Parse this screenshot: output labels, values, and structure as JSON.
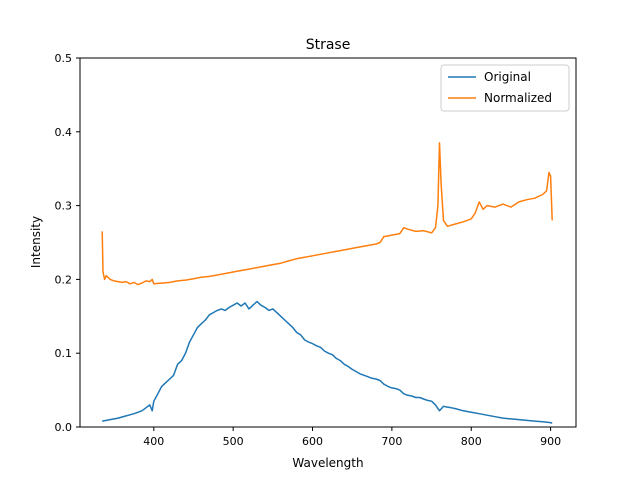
{
  "chart_data": {
    "type": "line",
    "title": "Strase",
    "xlabel": "Wavelength",
    "ylabel": "Intensity",
    "xlim": [
      307,
      932
    ],
    "ylim": [
      0,
      0.5
    ],
    "xticks": [
      "400",
      "500",
      "600",
      "700",
      "800",
      "900"
    ],
    "yticks": [
      "0.0",
      "0.1",
      "0.2",
      "0.3",
      "0.4",
      "0.5"
    ],
    "xtick_values": [
      400,
      500,
      600,
      700,
      800,
      900
    ],
    "ytick_values": [
      0,
      0.1,
      0.2,
      0.3,
      0.4,
      0.5
    ],
    "grid": false,
    "legend_position": "top-right",
    "series": [
      {
        "name": "Original",
        "color": "#1f77b4",
        "x": [
          335,
          345,
          355,
          365,
          375,
          385,
          390,
          395,
          398,
          400,
          405,
          410,
          415,
          420,
          425,
          430,
          435,
          440,
          445,
          450,
          455,
          460,
          465,
          470,
          475,
          480,
          485,
          490,
          495,
          500,
          505,
          510,
          515,
          520,
          525,
          530,
          535,
          540,
          545,
          550,
          555,
          560,
          565,
          570,
          575,
          580,
          585,
          590,
          595,
          600,
          605,
          610,
          615,
          620,
          625,
          630,
          635,
          640,
          645,
          650,
          655,
          660,
          665,
          670,
          675,
          680,
          685,
          690,
          695,
          700,
          705,
          710,
          715,
          720,
          725,
          730,
          735,
          740,
          745,
          750,
          755,
          760,
          765,
          770,
          775,
          780,
          790,
          800,
          810,
          820,
          830,
          840,
          850,
          860,
          870,
          880,
          890,
          900,
          902
        ],
        "y": [
          0.008,
          0.01,
          0.012,
          0.015,
          0.018,
          0.022,
          0.026,
          0.03,
          0.022,
          0.035,
          0.045,
          0.055,
          0.06,
          0.065,
          0.07,
          0.085,
          0.09,
          0.1,
          0.115,
          0.125,
          0.135,
          0.14,
          0.145,
          0.152,
          0.155,
          0.158,
          0.16,
          0.158,
          0.162,
          0.165,
          0.168,
          0.164,
          0.168,
          0.16,
          0.165,
          0.17,
          0.165,
          0.162,
          0.158,
          0.16,
          0.155,
          0.15,
          0.145,
          0.14,
          0.135,
          0.128,
          0.125,
          0.118,
          0.115,
          0.113,
          0.11,
          0.108,
          0.103,
          0.1,
          0.098,
          0.093,
          0.09,
          0.085,
          0.082,
          0.078,
          0.075,
          0.072,
          0.07,
          0.068,
          0.066,
          0.065,
          0.063,
          0.058,
          0.055,
          0.053,
          0.052,
          0.05,
          0.045,
          0.043,
          0.042,
          0.04,
          0.04,
          0.038,
          0.036,
          0.035,
          0.03,
          0.022,
          0.028,
          0.027,
          0.026,
          0.025,
          0.022,
          0.02,
          0.018,
          0.016,
          0.014,
          0.012,
          0.011,
          0.01,
          0.009,
          0.008,
          0.007,
          0.006,
          0.005
        ]
      },
      {
        "name": "Normalized",
        "color": "#ff7f0e",
        "x": [
          335,
          336,
          338,
          340,
          345,
          350,
          355,
          360,
          365,
          370,
          375,
          380,
          385,
          390,
          395,
          398,
          400,
          410,
          420,
          430,
          440,
          450,
          460,
          470,
          480,
          490,
          500,
          510,
          520,
          530,
          540,
          550,
          560,
          570,
          580,
          590,
          600,
          610,
          620,
          630,
          640,
          650,
          660,
          670,
          680,
          685,
          690,
          700,
          710,
          715,
          720,
          730,
          740,
          750,
          755,
          758,
          760,
          762,
          765,
          770,
          780,
          790,
          800,
          805,
          810,
          815,
          820,
          830,
          840,
          850,
          860,
          870,
          880,
          890,
          895,
          898,
          900,
          902
        ],
        "y": [
          0.265,
          0.21,
          0.2,
          0.205,
          0.2,
          0.198,
          0.197,
          0.196,
          0.197,
          0.194,
          0.196,
          0.193,
          0.195,
          0.198,
          0.197,
          0.2,
          0.194,
          0.195,
          0.196,
          0.198,
          0.199,
          0.201,
          0.203,
          0.204,
          0.206,
          0.208,
          0.21,
          0.212,
          0.214,
          0.216,
          0.218,
          0.22,
          0.222,
          0.225,
          0.228,
          0.23,
          0.232,
          0.234,
          0.236,
          0.238,
          0.24,
          0.242,
          0.244,
          0.246,
          0.248,
          0.25,
          0.258,
          0.26,
          0.262,
          0.27,
          0.268,
          0.265,
          0.266,
          0.263,
          0.27,
          0.3,
          0.385,
          0.33,
          0.28,
          0.272,
          0.275,
          0.278,
          0.282,
          0.29,
          0.305,
          0.295,
          0.3,
          0.298,
          0.302,
          0.298,
          0.305,
          0.308,
          0.31,
          0.315,
          0.32,
          0.345,
          0.34,
          0.28
        ]
      }
    ]
  }
}
